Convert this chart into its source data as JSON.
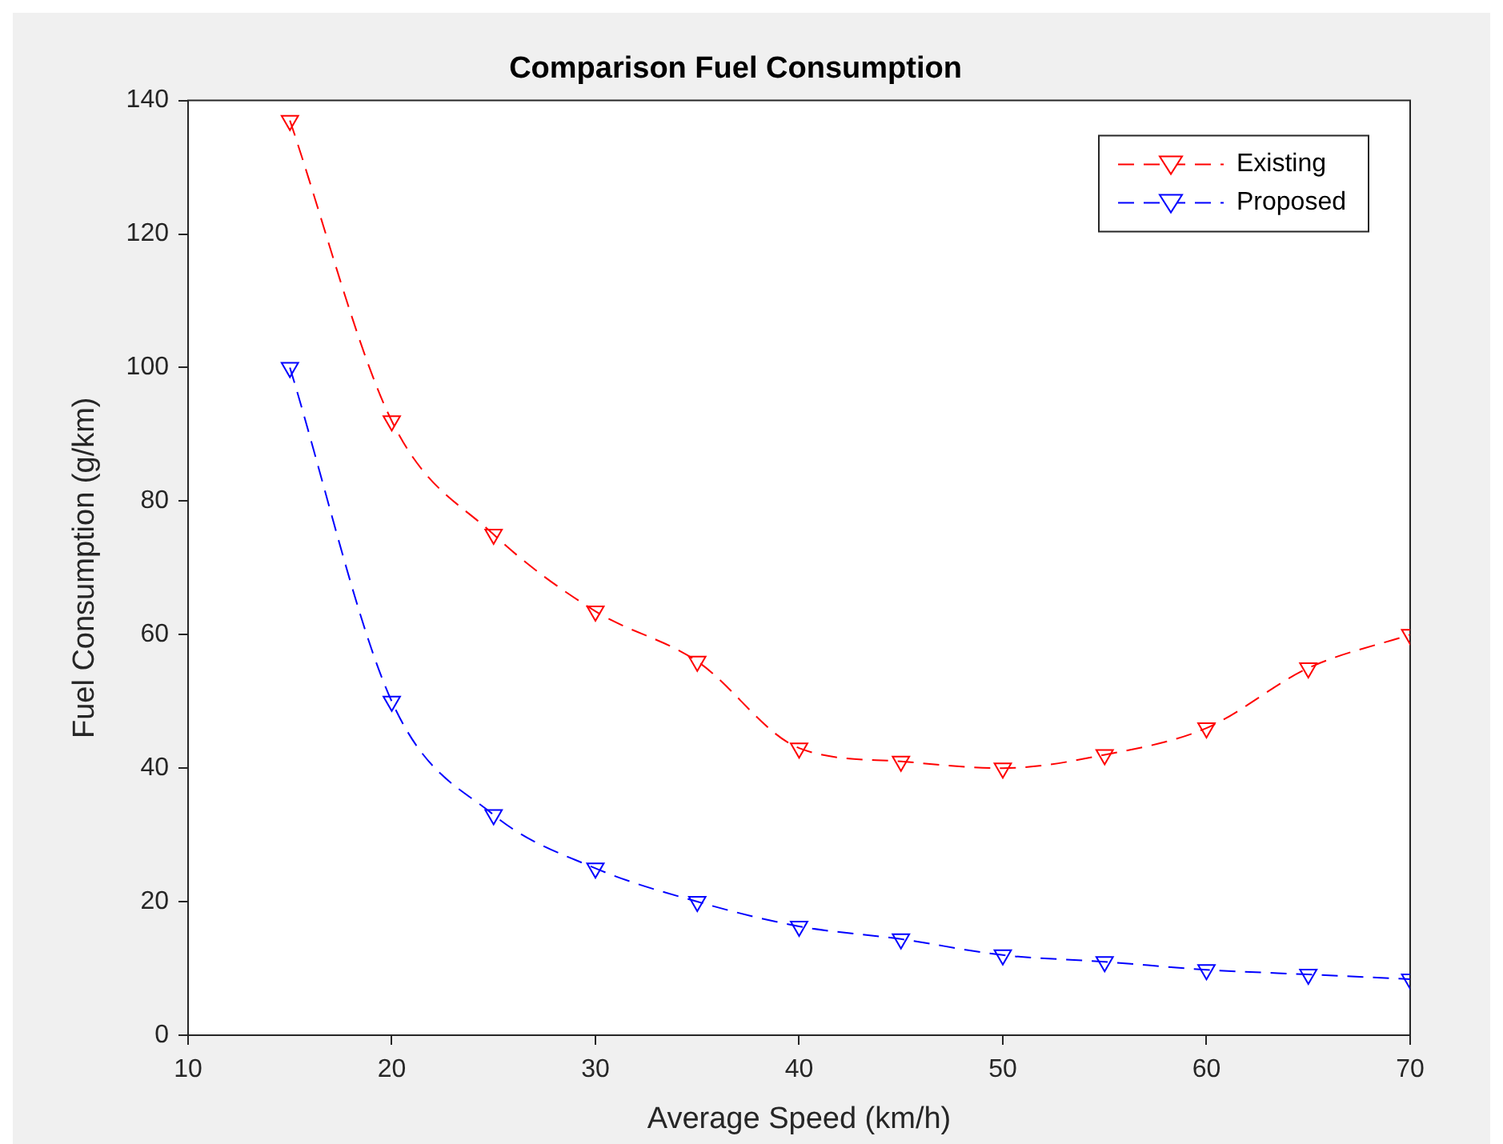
{
  "chart_data": {
    "type": "line",
    "title": "Comparison Fuel Consumption",
    "xlabel": "Average Speed (km/h)",
    "ylabel": "Fuel Consumption (g/km)",
    "x": [
      15,
      20,
      25,
      30,
      35,
      40,
      45,
      50,
      55,
      60,
      65,
      70
    ],
    "series": [
      {
        "name": "Existing",
        "color": "#ff0000",
        "values": [
          137,
          92,
          75,
          63.5,
          56,
          43,
          41,
          40,
          42,
          46,
          55,
          60
        ]
      },
      {
        "name": "Proposed",
        "color": "#0000ff",
        "values": [
          100,
          50,
          33,
          25,
          20,
          16.3,
          14.4,
          12,
          11,
          9.8,
          9.1,
          8.4
        ]
      }
    ],
    "xlim": [
      10,
      70
    ],
    "xticks": [
      10,
      20,
      30,
      40,
      50,
      60,
      70
    ],
    "ylim": [
      0,
      140
    ],
    "yticks": [
      0,
      20,
      40,
      60,
      80,
      100,
      120,
      140
    ],
    "legend": "top right",
    "marker": "triangle",
    "line_style": "dashed"
  }
}
